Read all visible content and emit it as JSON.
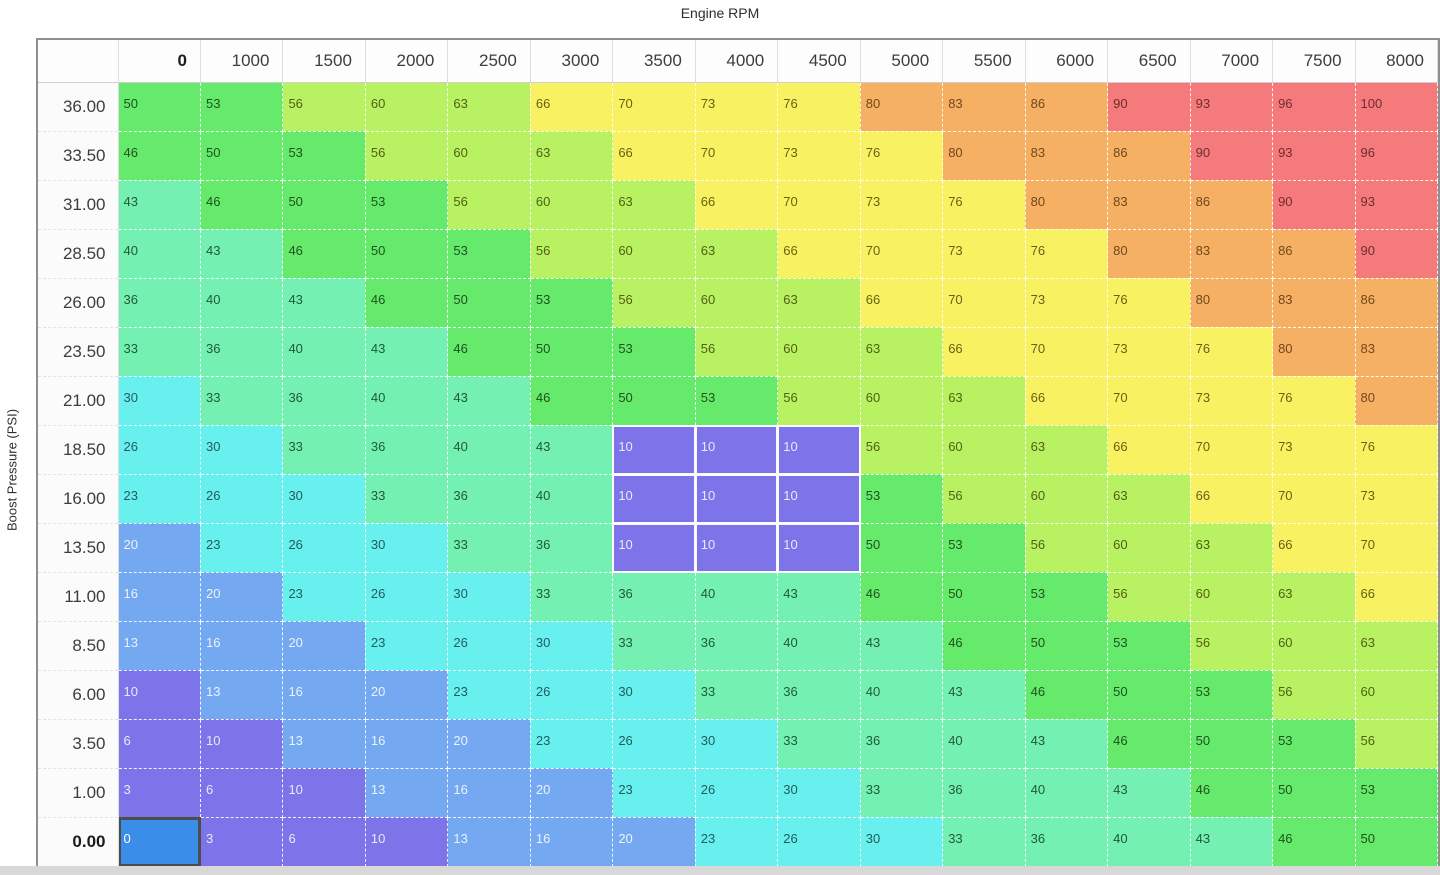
{
  "axes": {
    "x_title": "Engine RPM",
    "y_title": "Boost Pressure (PSI)"
  },
  "table": {
    "col_headers": [
      "0",
      "1000",
      "1500",
      "2000",
      "2500",
      "3000",
      "3500",
      "4000",
      "4500",
      "5000",
      "5500",
      "6000",
      "6500",
      "7000",
      "7500",
      "8000"
    ],
    "row_headers": [
      "36.00",
      "33.50",
      "31.00",
      "28.50",
      "26.00",
      "23.50",
      "21.00",
      "18.50",
      "16.00",
      "13.50",
      "11.00",
      "8.50",
      "6.00",
      "3.50",
      "1.00",
      "0.00"
    ],
    "rows": [
      [
        50,
        53,
        56,
        60,
        63,
        66,
        70,
        73,
        76,
        80,
        83,
        86,
        90,
        93,
        96,
        100
      ],
      [
        46,
        50,
        53,
        56,
        60,
        63,
        66,
        70,
        73,
        76,
        80,
        83,
        86,
        90,
        93,
        96
      ],
      [
        43,
        46,
        50,
        53,
        56,
        60,
        63,
        66,
        70,
        73,
        76,
        80,
        83,
        86,
        90,
        93
      ],
      [
        40,
        43,
        46,
        50,
        53,
        56,
        60,
        63,
        66,
        70,
        73,
        76,
        80,
        83,
        86,
        90
      ],
      [
        36,
        40,
        43,
        46,
        50,
        53,
        56,
        60,
        63,
        66,
        70,
        73,
        76,
        80,
        83,
        86
      ],
      [
        33,
        36,
        40,
        43,
        46,
        50,
        53,
        56,
        60,
        63,
        66,
        70,
        73,
        76,
        80,
        83
      ],
      [
        30,
        33,
        36,
        40,
        43,
        46,
        50,
        53,
        56,
        60,
        63,
        66,
        70,
        73,
        76,
        80
      ],
      [
        26,
        30,
        33,
        36,
        40,
        43,
        10,
        10,
        10,
        56,
        60,
        63,
        66,
        70,
        73,
        76
      ],
      [
        23,
        26,
        30,
        33,
        36,
        40,
        10,
        10,
        10,
        53,
        56,
        60,
        63,
        66,
        70,
        73
      ],
      [
        20,
        23,
        26,
        30,
        33,
        36,
        10,
        10,
        10,
        50,
        53,
        56,
        60,
        63,
        66,
        70
      ],
      [
        16,
        20,
        23,
        26,
        30,
        33,
        36,
        40,
        43,
        46,
        50,
        53,
        56,
        60,
        63,
        66
      ],
      [
        13,
        16,
        20,
        23,
        26,
        30,
        33,
        36,
        40,
        43,
        46,
        50,
        53,
        56,
        60,
        63
      ],
      [
        10,
        13,
        16,
        20,
        23,
        26,
        30,
        33,
        36,
        40,
        43,
        46,
        50,
        53,
        56,
        60
      ],
      [
        6,
        10,
        13,
        16,
        20,
        23,
        26,
        30,
        33,
        36,
        40,
        43,
        46,
        50,
        53,
        56
      ],
      [
        3,
        6,
        10,
        13,
        16,
        20,
        23,
        26,
        30,
        33,
        36,
        40,
        43,
        46,
        50,
        53
      ],
      [
        0,
        3,
        6,
        10,
        13,
        16,
        20,
        23,
        26,
        30,
        33,
        36,
        40,
        43,
        46,
        50
      ]
    ]
  },
  "selection": {
    "cursor": {
      "row": 15,
      "col": 0
    },
    "block": {
      "row_start": 7,
      "row_end": 9,
      "col_start": 6,
      "col_end": 8
    }
  },
  "heat_colors": {
    "bands": [
      {
        "max": 0,
        "bg": "#3a8de8",
        "fg": "#ffffff"
      },
      {
        "max": 10,
        "bg": "#7c74e8",
        "fg": "#e9e9fb"
      },
      {
        "max": 20,
        "bg": "#74a9f1",
        "fg": "#eaf2fd"
      },
      {
        "max": 30,
        "bg": "#68f0ee",
        "fg": "#235c5e"
      },
      {
        "max": 43,
        "bg": "#74f1b2",
        "fg": "#1f5a3a"
      },
      {
        "max": 53,
        "bg": "#66ea6b",
        "fg": "#1f521f"
      },
      {
        "max": 63,
        "bg": "#b8f161",
        "fg": "#535f14"
      },
      {
        "max": 76,
        "bg": "#f8f263",
        "fg": "#676112"
      },
      {
        "max": 86,
        "bg": "#f5b064",
        "fg": "#71481b"
      },
      {
        "max": 100,
        "bg": "#f57a7b",
        "fg": "#6f2d30"
      }
    ]
  }
}
